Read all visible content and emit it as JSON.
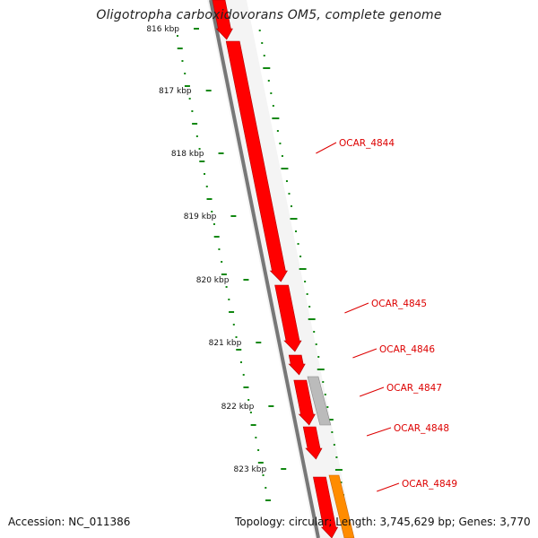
{
  "title": "Oligotropha carboxidovorans OM5, complete genome",
  "footer": {
    "accession": "Accession: NC_011386",
    "topology": "Topology: circular; Length: 3,745,629 bp; Genes: 3,770"
  },
  "ticks": [
    "816 kbp",
    "817 kbp",
    "818 kbp",
    "819 kbp",
    "820 kbp",
    "821 kbp",
    "822 kbp",
    "823 kbp"
  ],
  "genes": [
    "OCAR_4844",
    "OCAR_4845",
    "OCAR_4846",
    "OCAR_4847",
    "OCAR_4848",
    "OCAR_4849"
  ],
  "colors": {
    "cds": "#ff0000",
    "cds_dark": "#b30000",
    "rna": "#ff8c00",
    "pseudo": "#bbbbbb",
    "backbone": "#777777",
    "gc": "#118811",
    "label": "#dd0000"
  }
}
